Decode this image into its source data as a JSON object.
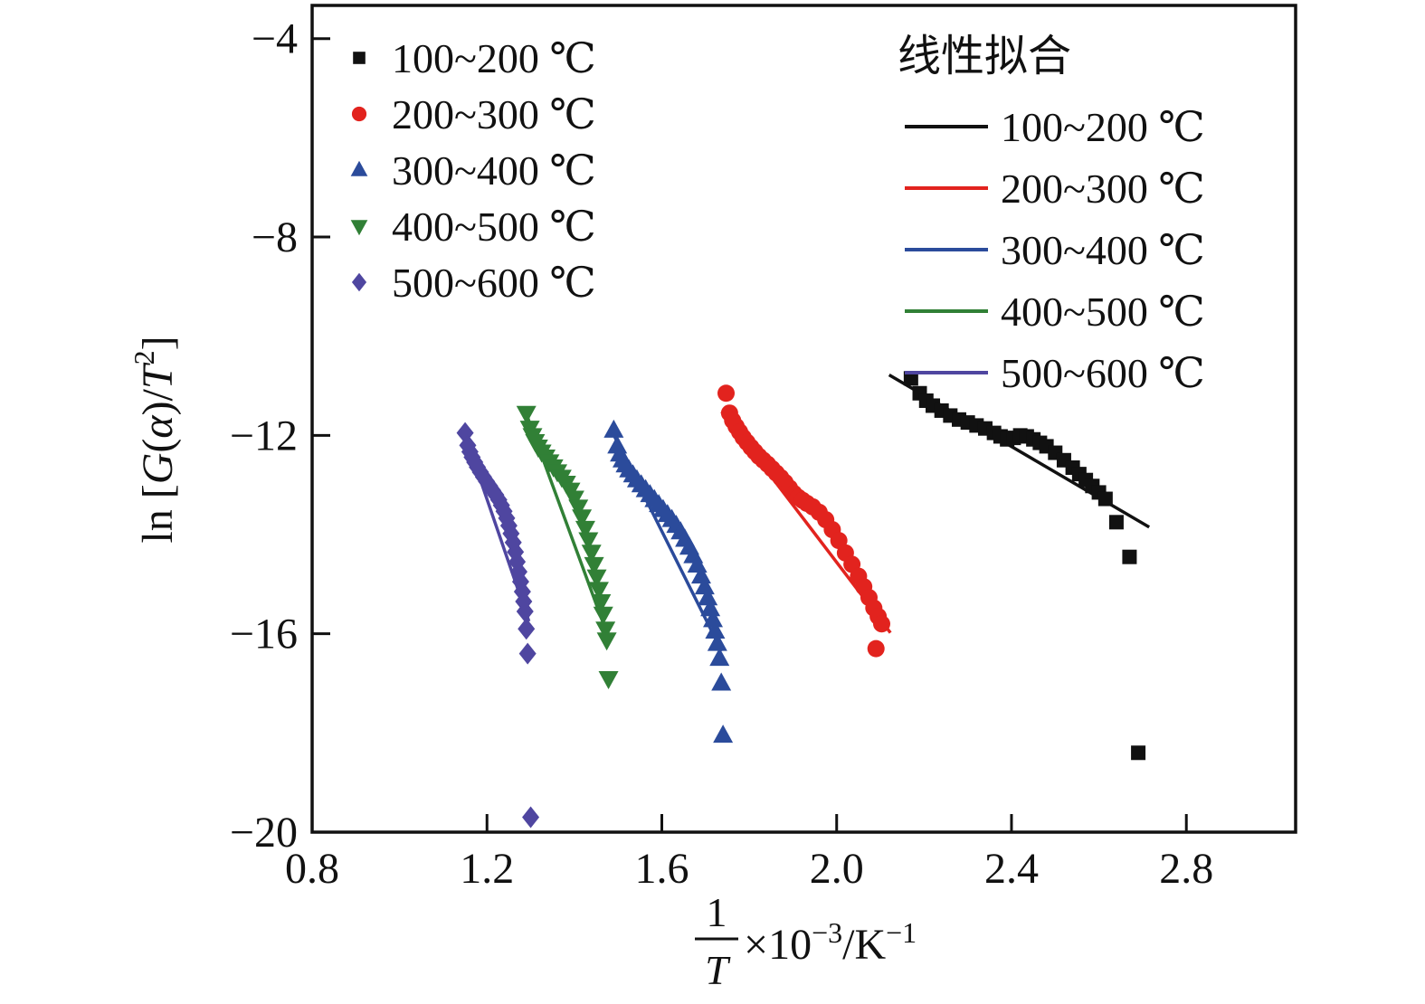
{
  "chart_data": {
    "type": "scatter",
    "title": "",
    "background": "#ffffff",
    "xlim": [
      0.8,
      3.05
    ],
    "ylim": [
      -20,
      -3.33
    ],
    "x_ticks": [
      0.8,
      1.2,
      1.6,
      2.0,
      2.4,
      2.8
    ],
    "y_ticks": [
      -4,
      -8,
      -12,
      -16,
      -20
    ],
    "grid": false,
    "ylabel_parts": [
      {
        "t": "ln ["
      },
      {
        "t": "G",
        "i": true
      },
      {
        "t": "("
      },
      {
        "t": "α",
        "i": true
      },
      {
        "t": ")/"
      },
      {
        "t": "T",
        "i": true
      },
      {
        "t": "2",
        "sup": true
      },
      {
        "t": "]"
      }
    ],
    "xlabel": {
      "fraction_numerator": "1",
      "fraction_denominator": "T",
      "suffix_parts": [
        {
          "t": "×10"
        },
        {
          "t": "−3",
          "sup": true
        },
        {
          "t": "/K"
        },
        {
          "t": "−1",
          "sup": true
        }
      ]
    },
    "line_legend_title": "线性拟合",
    "series": [
      {
        "name": "100~200 ℃",
        "color": "#111111",
        "marker": "square",
        "fit_line": [
          [
            2.12,
            -10.78
          ],
          [
            2.715,
            -13.85
          ]
        ],
        "points": [
          [
            2.17,
            -10.85
          ],
          [
            2.19,
            -11.15
          ],
          [
            2.205,
            -11.3
          ],
          [
            2.22,
            -11.4
          ],
          [
            2.24,
            -11.5
          ],
          [
            2.26,
            -11.6
          ],
          [
            2.28,
            -11.68
          ],
          [
            2.3,
            -11.74
          ],
          [
            2.32,
            -11.8
          ],
          [
            2.34,
            -11.86
          ],
          [
            2.36,
            -11.95
          ],
          [
            2.375,
            -12.02
          ],
          [
            2.39,
            -12.08
          ],
          [
            2.405,
            -12.05
          ],
          [
            2.42,
            -12.0
          ],
          [
            2.435,
            -12.02
          ],
          [
            2.45,
            -12.08
          ],
          [
            2.465,
            -12.15
          ],
          [
            2.48,
            -12.22
          ],
          [
            2.5,
            -12.35
          ],
          [
            2.52,
            -12.5
          ],
          [
            2.54,
            -12.65
          ],
          [
            2.555,
            -12.78
          ],
          [
            2.57,
            -12.9
          ],
          [
            2.585,
            -13.02
          ],
          [
            2.6,
            -13.15
          ],
          [
            2.615,
            -13.28
          ],
          [
            2.64,
            -13.75
          ],
          [
            2.67,
            -14.45
          ],
          [
            2.69,
            -18.4
          ]
        ]
      },
      {
        "name": "200~300 ℃",
        "color": "#e2231e",
        "marker": "circle",
        "fit_line": [
          [
            1.737,
            -11.52
          ],
          [
            2.123,
            -15.98
          ]
        ],
        "points": [
          [
            1.747,
            -11.15
          ],
          [
            1.755,
            -11.55
          ],
          [
            1.762,
            -11.7
          ],
          [
            1.77,
            -11.82
          ],
          [
            1.778,
            -11.93
          ],
          [
            1.786,
            -12.04
          ],
          [
            1.795,
            -12.14
          ],
          [
            1.804,
            -12.24
          ],
          [
            1.813,
            -12.33
          ],
          [
            1.822,
            -12.42
          ],
          [
            1.832,
            -12.5
          ],
          [
            1.842,
            -12.58
          ],
          [
            1.852,
            -12.67
          ],
          [
            1.862,
            -12.76
          ],
          [
            1.872,
            -12.85
          ],
          [
            1.882,
            -12.95
          ],
          [
            1.892,
            -13.06
          ],
          [
            1.902,
            -13.17
          ],
          [
            1.912,
            -13.25
          ],
          [
            1.922,
            -13.31
          ],
          [
            1.932,
            -13.37
          ],
          [
            1.945,
            -13.44
          ],
          [
            1.96,
            -13.55
          ],
          [
            1.975,
            -13.7
          ],
          [
            1.99,
            -13.9
          ],
          [
            2.005,
            -14.12
          ],
          [
            2.02,
            -14.37
          ],
          [
            2.035,
            -14.6
          ],
          [
            2.05,
            -14.84
          ],
          [
            2.062,
            -15.05
          ],
          [
            2.074,
            -15.27
          ],
          [
            2.085,
            -15.48
          ],
          [
            2.095,
            -15.65
          ],
          [
            2.103,
            -15.8
          ],
          [
            2.09,
            -16.3
          ]
        ]
      },
      {
        "name": "300~400 ℃",
        "color": "#2b4b9b",
        "marker": "triangle-up",
        "fit_line": [
          [
            1.486,
            -11.92
          ],
          [
            1.737,
            -16.35
          ]
        ],
        "points": [
          [
            1.49,
            -11.9
          ],
          [
            1.498,
            -12.22
          ],
          [
            1.504,
            -12.38
          ],
          [
            1.51,
            -12.5
          ],
          [
            1.517,
            -12.6
          ],
          [
            1.525,
            -12.7
          ],
          [
            1.534,
            -12.8
          ],
          [
            1.543,
            -12.9
          ],
          [
            1.553,
            -13.0
          ],
          [
            1.563,
            -13.1
          ],
          [
            1.573,
            -13.2
          ],
          [
            1.583,
            -13.3
          ],
          [
            1.593,
            -13.4
          ],
          [
            1.603,
            -13.5
          ],
          [
            1.613,
            -13.6
          ],
          [
            1.623,
            -13.7
          ],
          [
            1.633,
            -13.82
          ],
          [
            1.643,
            -13.95
          ],
          [
            1.653,
            -14.1
          ],
          [
            1.663,
            -14.26
          ],
          [
            1.672,
            -14.43
          ],
          [
            1.681,
            -14.62
          ],
          [
            1.69,
            -14.84
          ],
          [
            1.698,
            -15.06
          ],
          [
            1.705,
            -15.28
          ],
          [
            1.711,
            -15.5
          ],
          [
            1.717,
            -15.72
          ],
          [
            1.722,
            -15.95
          ],
          [
            1.727,
            -16.2
          ],
          [
            1.732,
            -16.5
          ],
          [
            1.736,
            -17.0
          ],
          [
            1.74,
            -18.05
          ]
        ]
      },
      {
        "name": "400~500 ℃",
        "color": "#318036",
        "marker": "triangle-down",
        "fit_line": [
          [
            1.284,
            -11.42
          ],
          [
            1.479,
            -16.1
          ]
        ],
        "points": [
          [
            1.29,
            -11.55
          ],
          [
            1.298,
            -11.85
          ],
          [
            1.304,
            -12.0
          ],
          [
            1.31,
            -12.12
          ],
          [
            1.317,
            -12.23
          ],
          [
            1.325,
            -12.33
          ],
          [
            1.334,
            -12.43
          ],
          [
            1.343,
            -12.53
          ],
          [
            1.352,
            -12.63
          ],
          [
            1.361,
            -12.73
          ],
          [
            1.371,
            -12.84
          ],
          [
            1.381,
            -12.96
          ],
          [
            1.391,
            -13.1
          ],
          [
            1.4,
            -13.26
          ],
          [
            1.409,
            -13.44
          ],
          [
            1.417,
            -13.64
          ],
          [
            1.425,
            -13.87
          ],
          [
            1.432,
            -14.1
          ],
          [
            1.439,
            -14.35
          ],
          [
            1.445,
            -14.6
          ],
          [
            1.451,
            -14.85
          ],
          [
            1.456,
            -15.1
          ],
          [
            1.461,
            -15.35
          ],
          [
            1.466,
            -15.6
          ],
          [
            1.471,
            -15.9
          ],
          [
            1.474,
            -16.12
          ],
          [
            1.478,
            -16.9
          ]
        ]
      },
      {
        "name": "500~600 ℃",
        "color": "#4f46a0",
        "marker": "diamond",
        "fit_line": [
          [
            1.146,
            -11.9
          ],
          [
            1.296,
            -15.75
          ]
        ],
        "points": [
          [
            1.15,
            -11.95
          ],
          [
            1.156,
            -12.2
          ],
          [
            1.161,
            -12.33
          ],
          [
            1.166,
            -12.44
          ],
          [
            1.172,
            -12.54
          ],
          [
            1.178,
            -12.64
          ],
          [
            1.185,
            -12.74
          ],
          [
            1.192,
            -12.84
          ],
          [
            1.199,
            -12.93
          ],
          [
            1.206,
            -13.02
          ],
          [
            1.213,
            -13.11
          ],
          [
            1.22,
            -13.2
          ],
          [
            1.227,
            -13.3
          ],
          [
            1.233,
            -13.41
          ],
          [
            1.239,
            -13.53
          ],
          [
            1.245,
            -13.67
          ],
          [
            1.25,
            -13.82
          ],
          [
            1.255,
            -13.98
          ],
          [
            1.26,
            -14.16
          ],
          [
            1.265,
            -14.35
          ],
          [
            1.269,
            -14.55
          ],
          [
            1.273,
            -14.75
          ],
          [
            1.277,
            -14.95
          ],
          [
            1.281,
            -15.15
          ],
          [
            1.284,
            -15.35
          ],
          [
            1.287,
            -15.55
          ],
          [
            1.29,
            -15.9
          ],
          [
            1.293,
            -16.4
          ],
          [
            1.3,
            -19.7
          ]
        ]
      }
    ]
  }
}
